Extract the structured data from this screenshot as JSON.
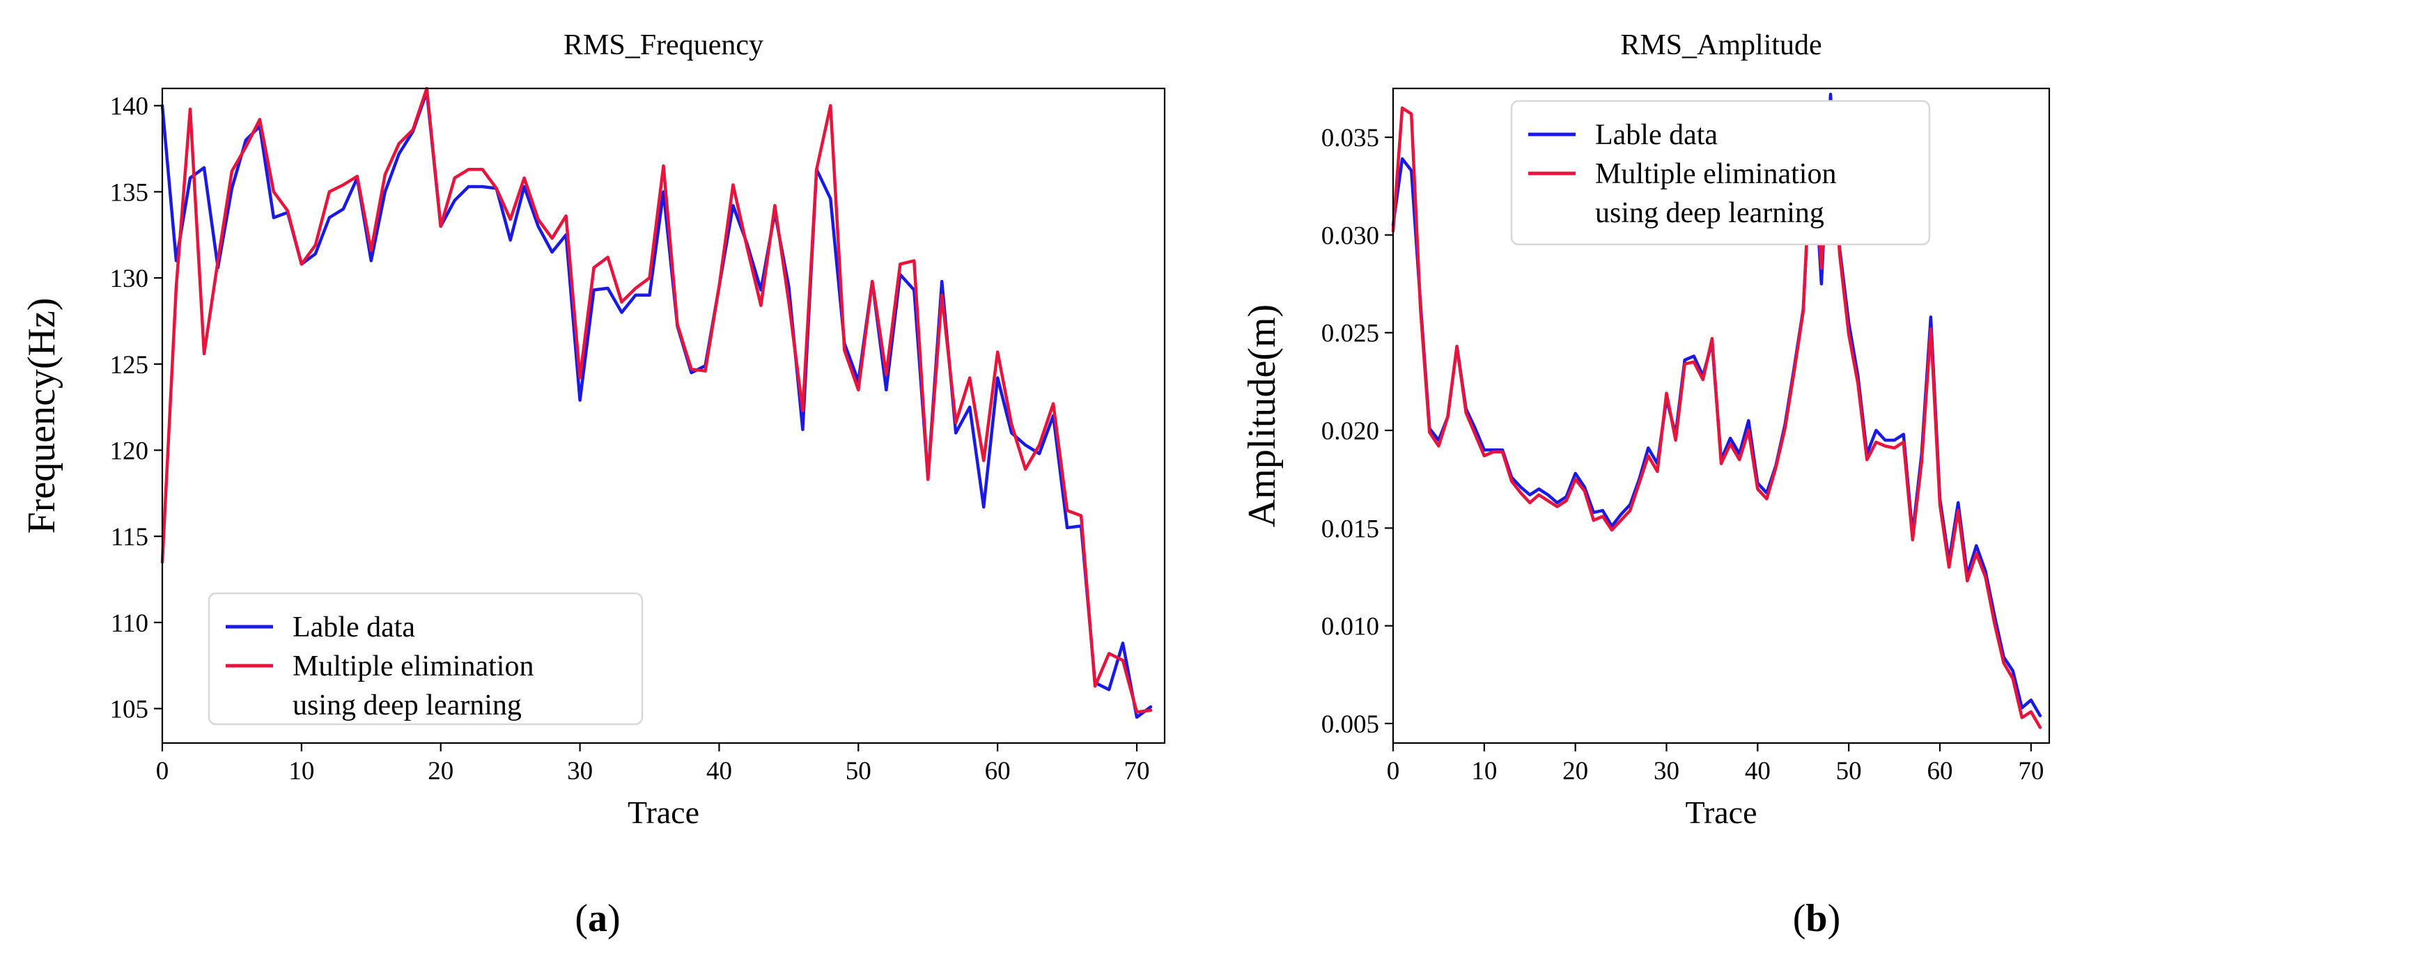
{
  "chart_data": [
    {
      "type": "line",
      "title": "RMS_Frequency",
      "xlabel": "Trace",
      "ylabel": "Frequency(Hz)",
      "caption": "(a)",
      "caption_letter": "a",
      "xlim": [
        0,
        72
      ],
      "ylim": [
        103,
        141
      ],
      "xticks": [
        0,
        10,
        20,
        30,
        40,
        50,
        60,
        70
      ],
      "yticks": [
        105,
        110,
        115,
        120,
        125,
        130,
        135,
        140
      ],
      "legend": {
        "position": "lower-left",
        "entries": [
          "Lable data",
          "Multiple elimination",
          "using deep learning"
        ]
      },
      "x": [
        0,
        1,
        2,
        3,
        4,
        5,
        6,
        7,
        8,
        9,
        10,
        11,
        12,
        13,
        14,
        15,
        16,
        17,
        18,
        19,
        20,
        21,
        22,
        23,
        24,
        25,
        26,
        27,
        28,
        29,
        30,
        31,
        32,
        33,
        34,
        35,
        36,
        37,
        38,
        39,
        40,
        41,
        42,
        43,
        44,
        45,
        46,
        47,
        48,
        49,
        50,
        51,
        52,
        53,
        54,
        55,
        56,
        57,
        58,
        59,
        60,
        61,
        62,
        63,
        64,
        65,
        66,
        67,
        68,
        69,
        70,
        71
      ],
      "series": [
        {
          "name": "Lable data",
          "color": "#1a1ae6",
          "values": [
            140,
            131,
            135.8,
            136.4,
            130.6,
            135.2,
            138,
            138.8,
            133.5,
            133.8,
            130.8,
            131.4,
            133.5,
            134,
            135.8,
            131,
            135,
            137.2,
            138.5,
            140.8,
            133,
            134.5,
            135.3,
            135.3,
            135.2,
            132.2,
            135.3,
            133,
            131.5,
            132.5,
            122.9,
            129.3,
            129.4,
            128,
            129,
            129,
            135,
            127.2,
            124.5,
            124.9,
            129.5,
            134.2,
            132,
            129.3,
            133.8,
            129.5,
            121.2,
            136.3,
            134.6,
            126.2,
            124,
            129.8,
            123.5,
            130.2,
            129.3,
            118.4,
            129.8,
            121,
            122.5,
            116.7,
            124.2,
            121,
            120.3,
            119.8,
            122,
            115.5,
            115.6,
            106.5,
            106.1,
            108.8,
            104.5,
            105.1
          ]
        },
        {
          "name": "Multiple elimination using deep learning",
          "color": "#e8143c",
          "values": [
            113.5,
            129.5,
            139.8,
            125.6,
            131,
            136.2,
            137.6,
            139.2,
            135,
            133.9,
            130.8,
            131.9,
            135,
            135.4,
            135.9,
            131.6,
            136,
            137.8,
            138.6,
            141,
            133,
            135.8,
            136.3,
            136.3,
            135.2,
            133.4,
            135.8,
            133.4,
            132.3,
            133.6,
            124.2,
            130.6,
            131.2,
            128.6,
            129.4,
            130,
            136.5,
            127.3,
            124.7,
            124.6,
            129.5,
            135.4,
            131.8,
            128.4,
            134.2,
            128.6,
            122.3,
            136.3,
            140,
            125.8,
            123.5,
            129.8,
            124.4,
            130.8,
            131,
            118.3,
            129,
            121.6,
            124.2,
            119.4,
            125.7,
            121.5,
            118.9,
            120.3,
            122.7,
            116.5,
            116.2,
            106.3,
            108.2,
            107.8,
            104.8,
            104.9
          ]
        }
      ]
    },
    {
      "type": "line",
      "title": "RMS_Amplitude",
      "xlabel": "Trace",
      "ylabel": "Amplitude(m)",
      "caption": "(b)",
      "caption_letter": "b",
      "xlim": [
        0,
        72
      ],
      "ylim": [
        0.004,
        0.0375
      ],
      "xticks": [
        0,
        10,
        20,
        30,
        40,
        50,
        60,
        70
      ],
      "yticks": [
        0.005,
        0.01,
        0.015,
        0.02,
        0.025,
        0.03,
        0.035
      ],
      "ytick_labels": [
        "0.005",
        "0.010",
        "0.015",
        "0.020",
        "0.025",
        "0.030",
        "0.035"
      ],
      "legend": {
        "position": "upper-left",
        "entries": [
          "Lable data",
          "Multiple elimination",
          "using deep learning"
        ]
      },
      "x": [
        0,
        1,
        2,
        3,
        4,
        5,
        6,
        7,
        8,
        9,
        10,
        11,
        12,
        13,
        14,
        15,
        16,
        17,
        18,
        19,
        20,
        21,
        22,
        23,
        24,
        25,
        26,
        27,
        28,
        29,
        30,
        31,
        32,
        33,
        34,
        35,
        36,
        37,
        38,
        39,
        40,
        41,
        42,
        43,
        44,
        45,
        46,
        47,
        48,
        49,
        50,
        51,
        52,
        53,
        54,
        55,
        56,
        57,
        58,
        59,
        60,
        61,
        62,
        63,
        64,
        65,
        66,
        67,
        68,
        69,
        70,
        71
      ],
      "series": [
        {
          "name": "Lable data",
          "color": "#1a1ae6",
          "values": [
            0.0305,
            0.0339,
            0.0333,
            0.0265,
            0.0201,
            0.0195,
            0.0207,
            0.0243,
            0.0211,
            0.0201,
            0.019,
            0.019,
            0.019,
            0.0176,
            0.0171,
            0.0167,
            0.017,
            0.0167,
            0.0163,
            0.0166,
            0.0178,
            0.0171,
            0.0158,
            0.0159,
            0.0151,
            0.0157,
            0.0162,
            0.0175,
            0.0191,
            0.0183,
            0.0216,
            0.0198,
            0.0236,
            0.0238,
            0.0228,
            0.0245,
            0.0185,
            0.0196,
            0.0188,
            0.0205,
            0.0173,
            0.0168,
            0.0182,
            0.0203,
            0.0232,
            0.0262,
            0.0353,
            0.0275,
            0.0372,
            0.0293,
            0.0255,
            0.0228,
            0.0188,
            0.02,
            0.0195,
            0.0195,
            0.0198,
            0.0147,
            0.0188,
            0.0258,
            0.0165,
            0.0133,
            0.0163,
            0.0126,
            0.0141,
            0.0128,
            0.0105,
            0.0084,
            0.0077,
            0.0058,
            0.0062,
            0.0054
          ]
        },
        {
          "name": "Multiple elimination using deep learning",
          "color": "#e8143c",
          "values": [
            0.0302,
            0.0365,
            0.0362,
            0.0262,
            0.0199,
            0.0192,
            0.0207,
            0.0243,
            0.0209,
            0.0198,
            0.0187,
            0.0189,
            0.0189,
            0.0174,
            0.0168,
            0.0163,
            0.0167,
            0.0164,
            0.0161,
            0.0164,
            0.0175,
            0.0169,
            0.0154,
            0.0156,
            0.0149,
            0.0154,
            0.0159,
            0.0173,
            0.0187,
            0.0179,
            0.0219,
            0.0195,
            0.0234,
            0.0235,
            0.0226,
            0.0247,
            0.0183,
            0.0193,
            0.0185,
            0.02,
            0.017,
            0.0165,
            0.0181,
            0.0201,
            0.023,
            0.0261,
            0.0355,
            0.0283,
            0.0366,
            0.029,
            0.0249,
            0.0224,
            0.0185,
            0.0194,
            0.0192,
            0.0191,
            0.0194,
            0.0144,
            0.0184,
            0.0252,
            0.0162,
            0.013,
            0.0159,
            0.0123,
            0.0137,
            0.0125,
            0.0101,
            0.0081,
            0.0073,
            0.0053,
            0.0056,
            0.0048
          ]
        }
      ]
    }
  ]
}
